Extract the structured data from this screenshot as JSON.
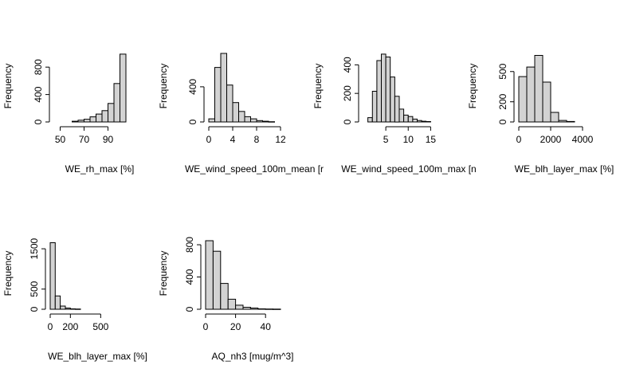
{
  "chart_data": [
    {
      "type": "bar",
      "xlabel": "WE_rh_max [%]",
      "ylabel": "Frequency",
      "xticks": [
        50,
        70,
        90
      ],
      "yticks": [
        0,
        400,
        800
      ],
      "xlim": [
        45,
        100
      ],
      "ylim": [
        0,
        1000
      ],
      "bins": [
        [
          60,
          65,
          10
        ],
        [
          65,
          70,
          25
        ],
        [
          70,
          75,
          40
        ],
        [
          75,
          80,
          75
        ],
        [
          80,
          85,
          115
        ],
        [
          85,
          90,
          165
        ],
        [
          90,
          95,
          270
        ],
        [
          95,
          100,
          560
        ],
        [
          100,
          105,
          990
        ]
      ]
    },
    {
      "type": "bar",
      "xlabel": "WE_wind_speed_100m_mean [r",
      "ylabel": "Frequency",
      "xticks": [
        0,
        4,
        8,
        12
      ],
      "yticks": [
        0,
        400
      ],
      "xlim": [
        0,
        12
      ],
      "ylim": [
        0,
        780
      ],
      "bins": [
        [
          0,
          1,
          35
        ],
        [
          1,
          2,
          620
        ],
        [
          2,
          3,
          780
        ],
        [
          3,
          4,
          420
        ],
        [
          4,
          5,
          220
        ],
        [
          5,
          6,
          120
        ],
        [
          6,
          7,
          60
        ],
        [
          7,
          8,
          35
        ],
        [
          8,
          9,
          15
        ],
        [
          9,
          10,
          8
        ],
        [
          10,
          11,
          3
        ]
      ]
    },
    {
      "type": "bar",
      "xlabel": "WE_wind_speed_100m_max [n",
      "ylabel": "Frequency",
      "xticks": [
        5,
        10,
        15
      ],
      "yticks": [
        0,
        200,
        400
      ],
      "xlim": [
        0,
        16
      ],
      "ylim": [
        0,
        480
      ],
      "bins": [
        [
          1,
          2,
          30
        ],
        [
          2,
          3,
          215
        ],
        [
          3,
          4,
          430
        ],
        [
          4,
          5,
          475
        ],
        [
          5,
          6,
          455
        ],
        [
          6,
          7,
          315
        ],
        [
          7,
          8,
          180
        ],
        [
          8,
          9,
          90
        ],
        [
          9,
          10,
          48
        ],
        [
          10,
          11,
          38
        ],
        [
          11,
          12,
          20
        ],
        [
          12,
          13,
          10
        ],
        [
          13,
          14,
          5
        ],
        [
          14,
          15,
          3
        ]
      ]
    },
    {
      "type": "bar",
      "xlabel": "WE_blh_layer_max [%]",
      "ylabel": "Frequency",
      "xticks": [
        0,
        2000,
        4000
      ],
      "yticks": [
        0,
        200,
        500
      ],
      "xlim": [
        0,
        4500
      ],
      "ylim": [
        0,
        680
      ],
      "bins": [
        [
          0,
          500,
          450
        ],
        [
          500,
          1000,
          545
        ],
        [
          1000,
          1500,
          660
        ],
        [
          1500,
          2000,
          395
        ],
        [
          2000,
          2500,
          95
        ],
        [
          2500,
          3000,
          15
        ],
        [
          3000,
          3500,
          5
        ]
      ]
    },
    {
      "type": "bar",
      "xlabel": "WE_blh_layer_max [%]",
      "ylabel": "Frequency",
      "xticks": [
        0,
        200,
        500
      ],
      "yticks": [
        0,
        500,
        1500
      ],
      "xlim": [
        0,
        750
      ],
      "ylim": [
        0,
        1700
      ],
      "bins": [
        [
          0,
          50,
          1650
        ],
        [
          50,
          100,
          330
        ],
        [
          100,
          150,
          80
        ],
        [
          150,
          200,
          30
        ],
        [
          200,
          250,
          10
        ],
        [
          250,
          300,
          5
        ]
      ]
    },
    {
      "type": "bar",
      "xlabel": "AQ_nh3 [mug/m^3]",
      "ylabel": "Frequency",
      "xticks": [
        0,
        20,
        40
      ],
      "yticks": [
        0,
        400,
        800
      ],
      "xlim": [
        0,
        50
      ],
      "ylim": [
        0,
        850
      ],
      "bins": [
        [
          0,
          5,
          850
        ],
        [
          5,
          10,
          720
        ],
        [
          10,
          15,
          320
        ],
        [
          15,
          20,
          125
        ],
        [
          20,
          25,
          50
        ],
        [
          25,
          30,
          25
        ],
        [
          30,
          35,
          15
        ],
        [
          35,
          40,
          5
        ],
        [
          40,
          45,
          3
        ],
        [
          45,
          50,
          2
        ]
      ]
    }
  ]
}
